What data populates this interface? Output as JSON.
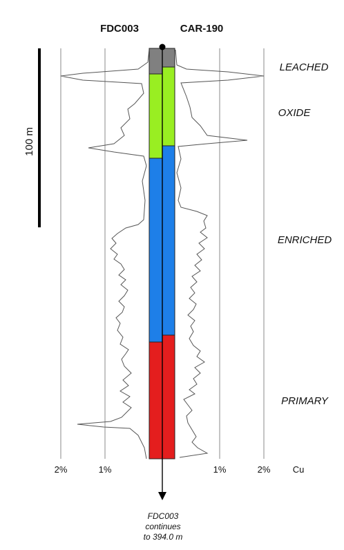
{
  "holes": {
    "left": "FDC003",
    "right": "CAR-190"
  },
  "scale_bar": {
    "label": "100 m"
  },
  "zones": [
    {
      "key": "leached",
      "label": "LEACHED",
      "color": "#808080"
    },
    {
      "key": "oxide",
      "label": "OXIDE",
      "color": "#99EE22"
    },
    {
      "key": "enriched",
      "label": "ENRICHED",
      "color": "#1E7FE8"
    },
    {
      "key": "primary",
      "label": "PRIMARY",
      "color": "#E41E1E"
    }
  ],
  "axis": {
    "left_ticks": [
      "2%",
      "1%"
    ],
    "right_ticks": [
      "1%",
      "2%"
    ],
    "unit": "Cu"
  },
  "note": {
    "line1": "FDC003",
    "line2": "continues",
    "line3": "to 394.0 m"
  },
  "colors": {
    "gridline": "#888888",
    "profile": "#555555",
    "outline": "#222222"
  }
}
